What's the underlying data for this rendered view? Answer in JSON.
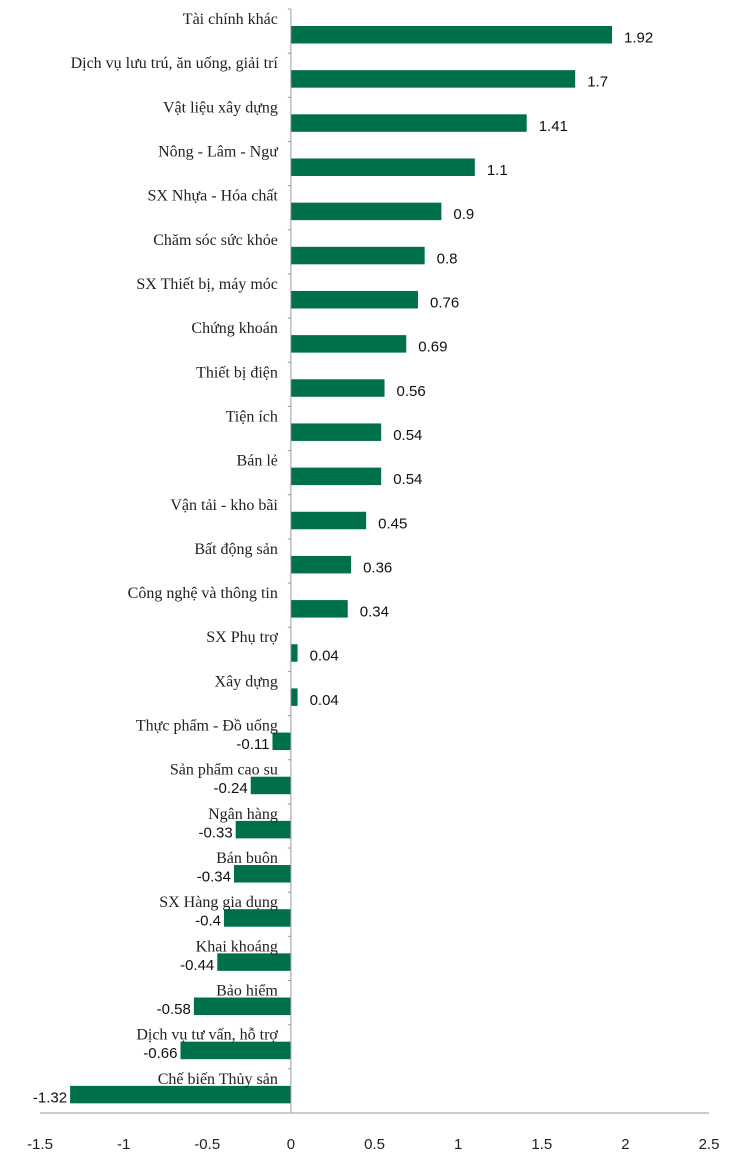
{
  "chart_data": {
    "type": "bar",
    "orientation": "horizontal",
    "categories": [
      "Tài chính khác",
      "Dịch vụ lưu trú, ăn uống, giải trí",
      "Vật liệu xây dựng",
      "Nông - Lâm - Ngư",
      "SX Nhựa - Hóa chất",
      "Chăm sóc sức khỏe",
      "SX Thiết bị, máy móc",
      "Chứng khoán",
      "Thiết bị điện",
      "Tiện ích",
      "Bán lẻ",
      "Vận tải - kho bãi",
      "Bất động sản",
      "Công nghệ và thông tin",
      "SX Phụ trợ",
      "Xây dựng",
      "Thực phẩm - Đồ uống",
      "Sản phẩm cao su",
      "Ngân hàng",
      "Bán buôn",
      "SX Hàng gia dụng",
      "Khai khoáng",
      "Bảo hiểm",
      "Dịch vụ tư vấn, hỗ trợ",
      "Chế biến Thủy sản"
    ],
    "values": [
      1.92,
      1.7,
      1.41,
      1.1,
      0.9,
      0.8,
      0.76,
      0.69,
      0.56,
      0.54,
      0.54,
      0.45,
      0.36,
      0.34,
      0.04,
      0.04,
      -0.11,
      -0.24,
      -0.33,
      -0.34,
      -0.4,
      -0.44,
      -0.58,
      -0.66,
      -1.32
    ],
    "value_labels": [
      "1.92",
      "1.7",
      "1.41",
      "1.1",
      "0.9",
      "0.8",
      "0.76",
      "0.69",
      "0.56",
      "0.54",
      "0.54",
      "0.45",
      "0.36",
      "0.34",
      "0.04",
      "0.04",
      "-0.11",
      "-0.24",
      "-0.33",
      "-0.34",
      "-0.4",
      "-0.44",
      "-0.58",
      "-0.66",
      "-1.32"
    ],
    "xlim": [
      -1.5,
      2.5
    ],
    "x_ticks": [
      -1.5,
      -1,
      -0.5,
      0,
      0.5,
      1,
      1.5,
      2,
      2.5
    ],
    "x_tick_labels": [
      "-1.5",
      "-1",
      "-0.5",
      "0",
      "0.5",
      "1",
      "1.5",
      "2",
      "2.5"
    ],
    "title": "",
    "xlabel": "",
    "ylabel": "",
    "legend": "none",
    "grid": false,
    "bar_color": "#00704a"
  }
}
